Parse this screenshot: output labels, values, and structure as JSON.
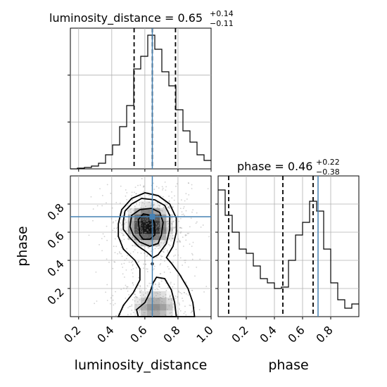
{
  "chart_data": {
    "type": "corner",
    "parameters": [
      "luminosity_distance",
      "phase"
    ],
    "truths": {
      "luminosity_distance": 0.645,
      "phase": 0.71
    },
    "truth_color": "#4682b4",
    "panels": [
      {
        "id": "luminosity_distance_hist",
        "type": "step-histogram",
        "title": {
          "name": "luminosity_distance",
          "median": "0.65",
          "plus": "+0.14",
          "minus": "−0.11"
        },
        "quantiles": [
          0.535,
          0.645,
          0.785
        ],
        "xlim": [
          0.15,
          1.0
        ],
        "ylim": [
          0,
          1.0
        ],
        "x_ticks": [
          0.2,
          0.4,
          0.6,
          0.8,
          1.0
        ],
        "bin_width": 0.0425,
        "bin_starts": [
          0.15,
          0.1925,
          0.235,
          0.2775,
          0.32,
          0.3625,
          0.405,
          0.4475,
          0.49,
          0.5325,
          0.575,
          0.6175,
          0.66,
          0.7025,
          0.745,
          0.7875,
          0.83,
          0.8725,
          0.915,
          0.9575
        ],
        "counts": [
          0.0,
          0.005,
          0.01,
          0.02,
          0.04,
          0.1,
          0.17,
          0.3,
          0.45,
          0.71,
          0.8,
          0.95,
          0.85,
          0.69,
          0.59,
          0.42,
          0.27,
          0.19,
          0.1,
          0.06
        ]
      },
      {
        "id": "phase_hist",
        "type": "step-histogram",
        "title": {
          "name": "phase",
          "median": "0.46",
          "plus": "+0.22",
          "minus": "−0.38"
        },
        "quantiles": [
          0.075,
          0.46,
          0.675
        ],
        "xlim": [
          0.0,
          1.0
        ],
        "ylim": [
          0,
          1.0
        ],
        "x_ticks": [
          0.2,
          0.4,
          0.6,
          0.8
        ],
        "bin_width": 0.05,
        "bin_starts": [
          0.0,
          0.05,
          0.1,
          0.15,
          0.2,
          0.25,
          0.3,
          0.35,
          0.4,
          0.45,
          0.5,
          0.55,
          0.6,
          0.65,
          0.7,
          0.75,
          0.8,
          0.85,
          0.9,
          0.95
        ],
        "counts": [
          0.9,
          0.72,
          0.6,
          0.48,
          0.45,
          0.36,
          0.27,
          0.24,
          0.2,
          0.21,
          0.4,
          0.58,
          0.67,
          0.82,
          0.75,
          0.48,
          0.24,
          0.12,
          0.06,
          0.09
        ]
      },
      {
        "id": "joint",
        "type": "2d-density-contour",
        "x_param": "luminosity_distance",
        "y_param": "phase",
        "xlim": [
          0.15,
          1.0
        ],
        "ylim": [
          0.0,
          1.0
        ],
        "x_ticks": [
          0.2,
          0.4,
          0.6,
          0.8,
          1.0
        ],
        "y_ticks": [
          0.2,
          0.4,
          0.6,
          0.8
        ],
        "density_peaks": [
          {
            "x": 0.62,
            "y": 0.66,
            "level": 0.9
          },
          {
            "x": 0.66,
            "y": 0.02,
            "level": 0.55
          }
        ]
      }
    ],
    "labels": {
      "x_bottom_left": "luminosity_distance",
      "x_bottom_right": "phase",
      "y_left": "phase"
    },
    "grid": true
  },
  "text": {
    "hist1_name": "luminosity_distance = ",
    "hist1_median": "0.65",
    "hist1_plus": "+0.14",
    "hist1_minus": "−0.11",
    "hist2_name": "phase = ",
    "hist2_median": "0.46",
    "hist2_plus": "+0.22",
    "hist2_minus": "−0.38",
    "xlabel_left": "luminosity_distance",
    "xlabel_right": "phase",
    "ylabel": "phase"
  }
}
